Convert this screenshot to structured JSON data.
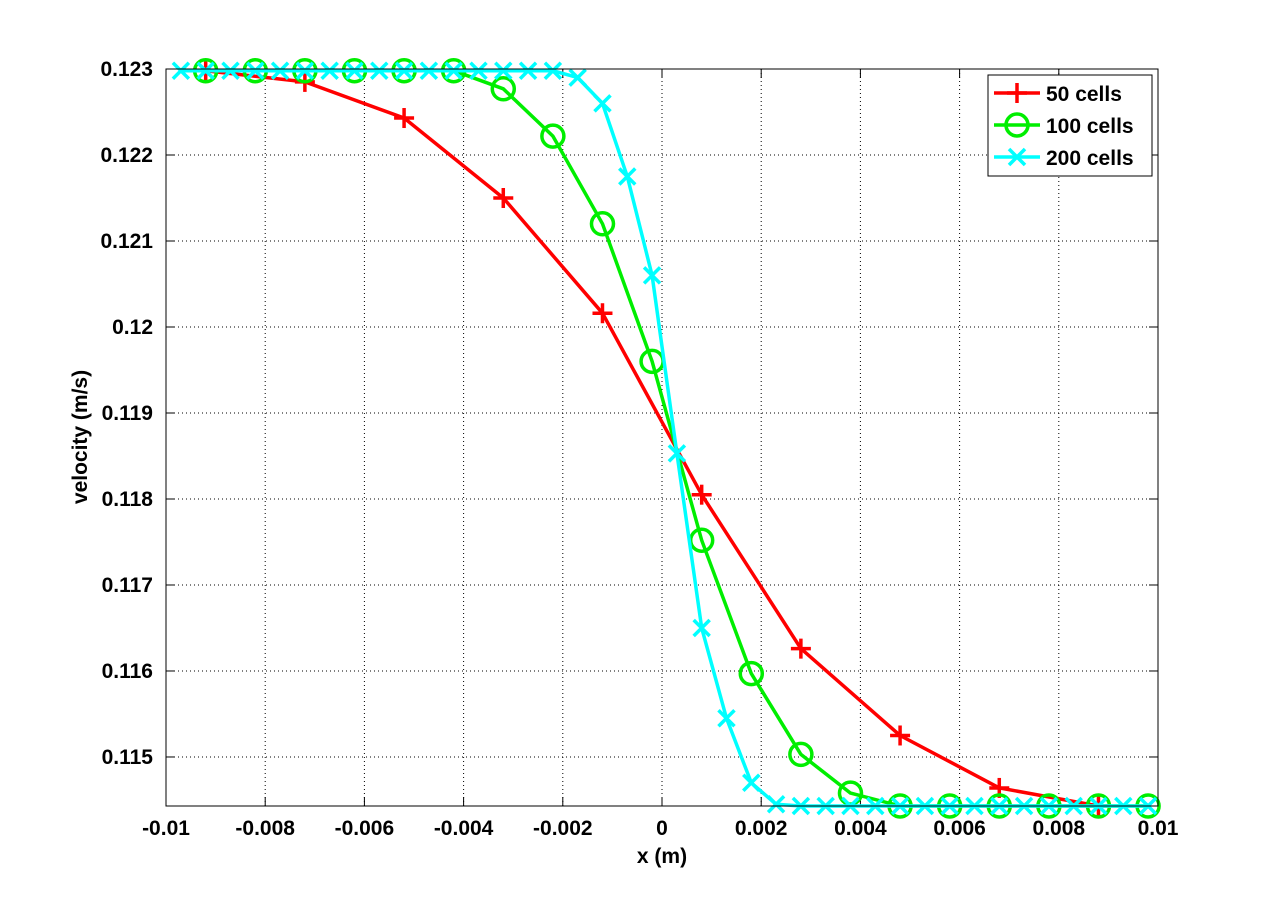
{
  "chart_data": {
    "type": "line",
    "title": "",
    "xlabel": "x (m)",
    "ylabel": "velocity (m/s)",
    "xlim": [
      -0.01,
      0.01
    ],
    "ylim": [
      0.11443,
      0.123
    ],
    "xticks": [
      -0.01,
      -0.008,
      -0.006,
      -0.004,
      -0.002,
      0,
      0.002,
      0.004,
      0.006,
      0.008,
      0.01
    ],
    "xtick_labels": [
      "-0.01",
      "-0.008",
      "-0.006",
      "-0.004",
      "-0.002",
      "0",
      "0.002",
      "0.004",
      "0.006",
      "0.008",
      "0.01"
    ],
    "yticks": [
      0.115,
      0.116,
      0.117,
      0.118,
      0.119,
      0.12,
      0.121,
      0.122,
      0.123
    ],
    "ytick_labels": [
      "0.115",
      "0.116",
      "0.117",
      "0.118",
      "0.119",
      "0.12",
      "0.121",
      "0.122",
      "0.123"
    ],
    "grid": true,
    "legend_position": "top-right",
    "series": [
      {
        "name": "50 cells",
        "color": "#ff0000",
        "marker": "plus",
        "x": [
          -0.0092,
          -0.0072,
          -0.0052,
          -0.0032,
          -0.0012,
          0.0008,
          0.0028,
          0.0048,
          0.0068,
          0.0088
        ],
        "y": [
          0.12298,
          0.12285,
          0.12243,
          0.1215,
          0.12016,
          0.11805,
          0.11626,
          0.11525,
          0.11464,
          0.11443
        ]
      },
      {
        "name": "100 cells",
        "color": "#00ee00",
        "marker": "circle",
        "x": [
          -0.0092,
          -0.0082,
          -0.0072,
          -0.0062,
          -0.0052,
          -0.0042,
          -0.0032,
          -0.0022,
          -0.0012,
          -0.0002,
          0.0008,
          0.0018,
          0.0028,
          0.0038,
          0.0048,
          0.0058,
          0.0068,
          0.0078,
          0.0088,
          0.0098
        ],
        "y": [
          0.12298,
          0.12298,
          0.12298,
          0.12298,
          0.12298,
          0.12298,
          0.12277,
          0.12222,
          0.1212,
          0.1196,
          0.11752,
          0.11597,
          0.11503,
          0.11458,
          0.11443,
          0.11443,
          0.11443,
          0.11443,
          0.11443,
          0.11443
        ]
      },
      {
        "name": "200 cells",
        "color": "#00ffff",
        "marker": "x",
        "x": [
          -0.0097,
          -0.0092,
          -0.0087,
          -0.0082,
          -0.0077,
          -0.0072,
          -0.0067,
          -0.0062,
          -0.0057,
          -0.0052,
          -0.0047,
          -0.0042,
          -0.0037,
          -0.0032,
          -0.0027,
          -0.0022,
          -0.0017,
          -0.0012,
          -0.0007,
          -0.0002,
          0.0003,
          0.0008,
          0.0013,
          0.0018,
          0.0023,
          0.0028,
          0.0033,
          0.0038,
          0.0043,
          0.0048,
          0.0053,
          0.0058,
          0.0063,
          0.0068,
          0.0073,
          0.0078,
          0.0083,
          0.0088,
          0.0093,
          0.0098
        ],
        "y": [
          0.12298,
          0.12298,
          0.12298,
          0.12298,
          0.12298,
          0.12298,
          0.12298,
          0.12298,
          0.12298,
          0.12298,
          0.12298,
          0.12298,
          0.12298,
          0.12298,
          0.12298,
          0.12298,
          0.1229,
          0.1226,
          0.12175,
          0.1206,
          0.11853,
          0.1165,
          0.11545,
          0.1147,
          0.11445,
          0.11443,
          0.11443,
          0.11443,
          0.11443,
          0.11443,
          0.11443,
          0.11443,
          0.11443,
          0.11443,
          0.11443,
          0.11443,
          0.11443,
          0.11443,
          0.11443,
          0.11443
        ]
      }
    ]
  }
}
